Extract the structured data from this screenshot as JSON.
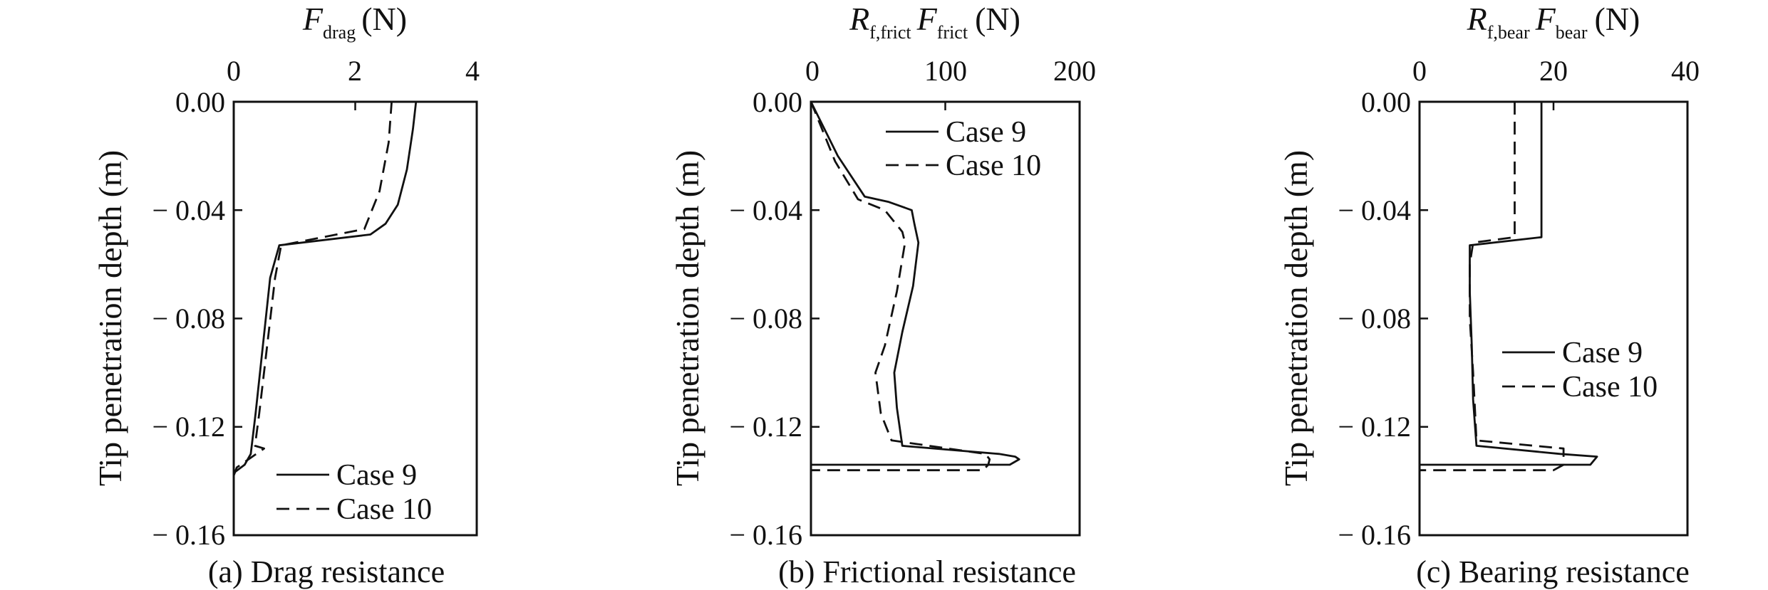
{
  "figure": {
    "panels": [
      {
        "caption": "(a) Drag resistance",
        "x_title": {
          "main": "F",
          "sub": "drag",
          "unit": "(N)"
        },
        "x_ticks": [
          "0",
          "2",
          "4"
        ],
        "y_title": "Tip penetration depth (m)",
        "y_ticks": [
          "0.00",
          "− 0.04",
          "− 0.08",
          "− 0.12",
          "− 0.16"
        ],
        "legend": {
          "placement": "bottom-right",
          "entries": [
            "Case 9",
            "Case 10"
          ]
        }
      },
      {
        "caption": "(b) Frictional resistance",
        "x_title": {
          "main1": "R",
          "sub1": "f,frict",
          "main2": "F",
          "sub2": "frict",
          "unit": "(N)"
        },
        "x_ticks": [
          "0",
          "100",
          "200"
        ],
        "y_title": "Tip penetration depth (m)",
        "y_ticks": [
          "0.00",
          "− 0.04",
          "− 0.08",
          "− 0.12",
          "− 0.16"
        ],
        "legend": {
          "placement": "top-right",
          "entries": [
            "Case 9",
            "Case 10"
          ]
        }
      },
      {
        "caption": "(c) Bearing resistance",
        "x_title": {
          "main1": "R",
          "sub1": "f,bear",
          "main2": "F",
          "sub2": "bear",
          "unit": "(N)"
        },
        "x_ticks": [
          "0",
          "20",
          "40"
        ],
        "y_title": "Tip penetration depth (m)",
        "y_ticks": [
          "0.00",
          "− 0.04",
          "− 0.08",
          "− 0.12",
          "− 0.16"
        ],
        "legend": {
          "placement": "middle-right",
          "entries": [
            "Case 9",
            "Case 10"
          ]
        }
      }
    ]
  },
  "chart_data": [
    {
      "type": "line",
      "title": "(a) Drag resistance",
      "xlabel": "F_drag (N)",
      "ylabel": "Tip penetration depth (m)",
      "xlim": [
        0,
        4
      ],
      "ylim": [
        -0.16,
        0.0
      ],
      "x_axis_position": "top",
      "grid": false,
      "legend": "bottom-right",
      "series": [
        {
          "name": "Case 9",
          "style": "solid",
          "points": [
            [
              3.0,
              0.0
            ],
            [
              2.95,
              -0.01
            ],
            [
              2.85,
              -0.025
            ],
            [
              2.7,
              -0.038
            ],
            [
              2.5,
              -0.045
            ],
            [
              2.25,
              -0.049
            ],
            [
              0.75,
              -0.053
            ],
            [
              0.6,
              -0.065
            ],
            [
              0.48,
              -0.09
            ],
            [
              0.36,
              -0.115
            ],
            [
              0.28,
              -0.13
            ],
            [
              0.18,
              -0.134
            ],
            [
              0.0,
              -0.137
            ]
          ]
        },
        {
          "name": "Case 10",
          "style": "dashed",
          "points": [
            [
              1.6,
              0.0
            ],
            [
              2.6,
              0.0
            ],
            [
              2.55,
              -0.015
            ],
            [
              2.4,
              -0.033
            ],
            [
              2.15,
              -0.047
            ],
            [
              0.78,
              -0.053
            ],
            [
              0.68,
              -0.065
            ],
            [
              0.55,
              -0.09
            ],
            [
              0.42,
              -0.115
            ],
            [
              0.35,
              -0.127
            ],
            [
              0.5,
              -0.128
            ],
            [
              0.05,
              -0.135
            ],
            [
              0.0,
              -0.138
            ]
          ]
        }
      ]
    },
    {
      "type": "line",
      "title": "(b) Frictional resistance",
      "xlabel": "R_f,frict F_frict (N)",
      "ylabel": "Tip penetration depth (m)",
      "xlim": [
        0,
        200
      ],
      "ylim": [
        -0.16,
        0.0
      ],
      "x_axis_position": "top",
      "grid": false,
      "legend": "top-right",
      "series": [
        {
          "name": "Case 9",
          "style": "solid",
          "points": [
            [
              0,
              0.0
            ],
            [
              20,
              -0.02
            ],
            [
              40,
              -0.035
            ],
            [
              58,
              -0.037
            ],
            [
              75,
              -0.04
            ],
            [
              77,
              -0.045
            ],
            [
              80,
              -0.052
            ],
            [
              76,
              -0.068
            ],
            [
              68,
              -0.085
            ],
            [
              62,
              -0.1
            ],
            [
              64,
              -0.113
            ],
            [
              68,
              -0.127
            ],
            [
              140,
              -0.13
            ],
            [
              152,
              -0.131
            ],
            [
              155,
              -0.132
            ],
            [
              148,
              -0.134
            ],
            [
              0,
              -0.134
            ]
          ]
        },
        {
          "name": "Case 10",
          "style": "dashed",
          "points": [
            [
              0,
              0.0
            ],
            [
              18,
              -0.022
            ],
            [
              35,
              -0.036
            ],
            [
              55,
              -0.04
            ],
            [
              68,
              -0.048
            ],
            [
              70,
              -0.052
            ],
            [
              64,
              -0.07
            ],
            [
              55,
              -0.09
            ],
            [
              48,
              -0.1
            ],
            [
              52,
              -0.115
            ],
            [
              60,
              -0.125
            ],
            [
              130,
              -0.13
            ],
            [
              133,
              -0.132
            ],
            [
              132,
              -0.134
            ],
            [
              128,
              -0.136
            ],
            [
              0,
              -0.136
            ]
          ]
        }
      ]
    },
    {
      "type": "line",
      "title": "(c) Bearing resistance",
      "xlabel": "R_f,bear F_bear (N)",
      "ylabel": "Tip penetration depth (m)",
      "xlim": [
        0,
        40
      ],
      "ylim": [
        -0.16,
        0.0
      ],
      "x_axis_position": "top",
      "grid": false,
      "legend": "middle-right",
      "series": [
        {
          "name": "Case 9",
          "style": "solid",
          "points": [
            [
              18.2,
              0.0
            ],
            [
              18.2,
              -0.05
            ],
            [
              7.5,
              -0.053
            ],
            [
              7.5,
              -0.07
            ],
            [
              7.8,
              -0.09
            ],
            [
              8.0,
              -0.11
            ],
            [
              8.5,
              -0.127
            ],
            [
              21.0,
              -0.13
            ],
            [
              26.5,
              -0.131
            ],
            [
              25.5,
              -0.134
            ],
            [
              0,
              -0.134
            ]
          ]
        },
        {
          "name": "Case 10",
          "style": "dashed",
          "points": [
            [
              14.2,
              0.0
            ],
            [
              14.2,
              -0.05
            ],
            [
              8.0,
              -0.052
            ],
            [
              7.5,
              -0.06
            ],
            [
              7.5,
              -0.08
            ],
            [
              8.0,
              -0.1
            ],
            [
              8.5,
              -0.125
            ],
            [
              21.5,
              -0.128
            ],
            [
              21.5,
              -0.134
            ],
            [
              20.0,
              -0.136
            ],
            [
              0,
              -0.136
            ]
          ]
        }
      ]
    }
  ]
}
